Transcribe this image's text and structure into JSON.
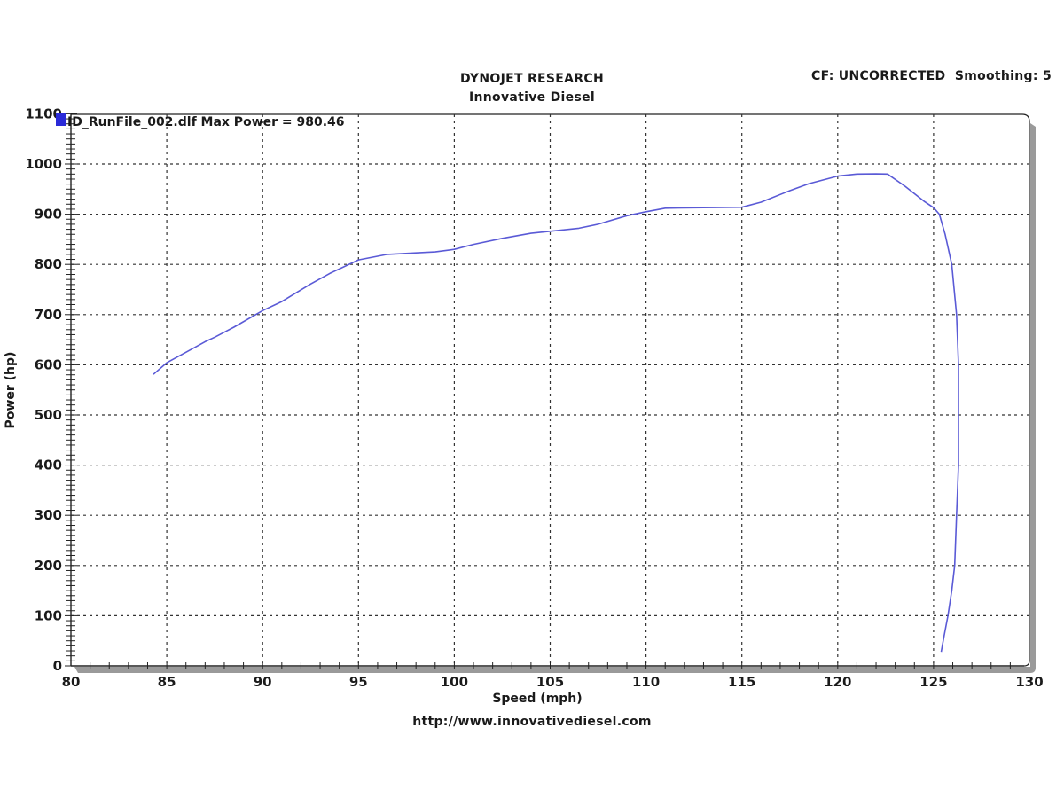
{
  "header": {
    "title_line1": "DYNOJET RESEARCH",
    "title_line2": "Innovative Diesel",
    "cf_label": "CF: UNCORRECTED  Smoothing: 5"
  },
  "footer": {
    "url": "http://www.innovativediesel.com"
  },
  "colors": {
    "series": "#5a5ad6",
    "legend_marker": "#2a2ad8",
    "grid": "#333333",
    "frame": "#222222",
    "shadow": "#9a9a9a"
  },
  "chart_data": {
    "type": "line",
    "title": "DYNOJET RESEARCH — Innovative Diesel",
    "subtitle": "CF: UNCORRECTED  Smoothing: 5",
    "xlabel": "Speed (mph)",
    "ylabel": "Power (hp)",
    "xlim": [
      80,
      130
    ],
    "ylim": [
      0,
      1100
    ],
    "x_ticks": [
      80,
      85,
      90,
      95,
      100,
      105,
      110,
      115,
      120,
      125,
      130
    ],
    "y_ticks": [
      0,
      100,
      200,
      300,
      400,
      500,
      600,
      700,
      800,
      900,
      1000,
      1100
    ],
    "x_minor_step": 1,
    "y_minor_step": 10,
    "grid": true,
    "grid_style": "dashed",
    "legend_position": "top-left inside",
    "legend": [
      "ID_RunFile_002.dlf Max Power = 980.46"
    ],
    "series": [
      {
        "name": "ID_RunFile_002.dlf",
        "max_power": 980.46,
        "points": [
          [
            84.3,
            581
          ],
          [
            85.0,
            604
          ],
          [
            86.0,
            625
          ],
          [
            87.0,
            646
          ],
          [
            87.5,
            655
          ],
          [
            88.5,
            675
          ],
          [
            90.0,
            708
          ],
          [
            91.0,
            726
          ],
          [
            92.5,
            761
          ],
          [
            93.5,
            782
          ],
          [
            95.0,
            809
          ],
          [
            96.5,
            820
          ],
          [
            98.0,
            823
          ],
          [
            99.0,
            825
          ],
          [
            100.0,
            830
          ],
          [
            101.0,
            840
          ],
          [
            102.5,
            852
          ],
          [
            104.0,
            862
          ],
          [
            105.0,
            866
          ],
          [
            106.5,
            872
          ],
          [
            107.5,
            880
          ],
          [
            109.0,
            897
          ],
          [
            110.0,
            905
          ],
          [
            111.0,
            912
          ],
          [
            113.0,
            913
          ],
          [
            115.0,
            914
          ],
          [
            116.0,
            924
          ],
          [
            117.5,
            947
          ],
          [
            118.5,
            961
          ],
          [
            120.0,
            976
          ],
          [
            121.0,
            980
          ],
          [
            122.0,
            980.46
          ],
          [
            122.6,
            980
          ],
          [
            123.5,
            956
          ],
          [
            124.5,
            926
          ],
          [
            125.0,
            913
          ],
          [
            125.3,
            900
          ],
          [
            125.6,
            860
          ],
          [
            125.95,
            800
          ],
          [
            126.2,
            700
          ],
          [
            126.3,
            600
          ],
          [
            126.3,
            500
          ],
          [
            126.3,
            400
          ],
          [
            126.2,
            300
          ],
          [
            126.1,
            200
          ],
          [
            125.95,
            150
          ],
          [
            125.75,
            100
          ],
          [
            125.55,
            60
          ],
          [
            125.4,
            28
          ]
        ]
      }
    ]
  }
}
